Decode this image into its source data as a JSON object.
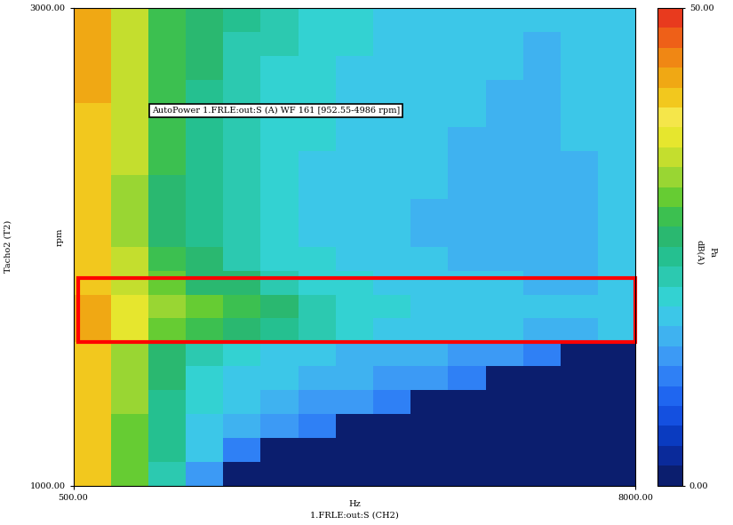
{
  "chart_data": {
    "type": "heatmap",
    "annotations": [
      "AutoPower 1.FRLE:out:S (A) WF 161 [952.55-4986 rpm]"
    ],
    "x_label": "Hz",
    "x_sublabel": "1.FRLE:out:S (CH2)",
    "y_label": "Tacho2 (T2)",
    "y_unit": "rpm",
    "xlim": [
      500,
      8000
    ],
    "ylim": [
      1000,
      3000
    ],
    "xticks": [
      {
        "value": 500,
        "label": "500.00"
      },
      {
        "value": 8000,
        "label": "8000.00"
      }
    ],
    "yticks": [
      {
        "value": 1000,
        "label": "1000.00"
      },
      {
        "value": 3000,
        "label": "3000.00"
      }
    ],
    "x_edges": [
      500,
      1000,
      1500,
      2000,
      2500,
      3000,
      3500,
      4000,
      4500,
      5000,
      5500,
      6000,
      6500,
      7000,
      7500,
      8000
    ],
    "y_edges": [
      1000,
      1100,
      1200,
      1300,
      1400,
      1500,
      1600,
      1700,
      1800,
      1900,
      2000,
      2100,
      2200,
      2300,
      2400,
      2500,
      2600,
      2700,
      2800,
      2900,
      3000
    ],
    "cells": [
      [
        40,
        30,
        22,
        14,
        0,
        0,
        0,
        0,
        0,
        0,
        0,
        0,
        0,
        0,
        0
      ],
      [
        40,
        31,
        23,
        17,
        12,
        0,
        0,
        0,
        0,
        0,
        0,
        0,
        0,
        0,
        0
      ],
      [
        41,
        31,
        24,
        18,
        15,
        13,
        11,
        0,
        0,
        0,
        0,
        0,
        0,
        0,
        0
      ],
      [
        41,
        32,
        24,
        19,
        17,
        15,
        14,
        13,
        11,
        0,
        0,
        0,
        0,
        0,
        0
      ],
      [
        41,
        32,
        25,
        20,
        18,
        17,
        16,
        15,
        14,
        13,
        11,
        0,
        0,
        0,
        0
      ],
      [
        41,
        33,
        26,
        21,
        19,
        18,
        17,
        16,
        16,
        15,
        14,
        13,
        12,
        0,
        0
      ],
      [
        42,
        36,
        31,
        28,
        26,
        23,
        21,
        19,
        18,
        18,
        17,
        17,
        16,
        16,
        17
      ],
      [
        42,
        37,
        32,
        30,
        28,
        25,
        22,
        20,
        19,
        18,
        18,
        17,
        17,
        17,
        18
      ],
      [
        41,
        35,
        30,
        27,
        25,
        22,
        20,
        19,
        18,
        18,
        17,
        17,
        16,
        16,
        17
      ],
      [
        40,
        34,
        28,
        25,
        22,
        20,
        19,
        18,
        17,
        17,
        16,
        16,
        16,
        16,
        17
      ],
      [
        40,
        33,
        27,
        24,
        21,
        19,
        18,
        17,
        17,
        16,
        16,
        16,
        15,
        16,
        17
      ],
      [
        40,
        33,
        27,
        23,
        21,
        19,
        18,
        17,
        17,
        16,
        16,
        15,
        15,
        16,
        17
      ],
      [
        41,
        33,
        27,
        23,
        21,
        19,
        18,
        18,
        17,
        17,
        16,
        16,
        15,
        16,
        18
      ],
      [
        41,
        34,
        28,
        24,
        21,
        20,
        18,
        18,
        17,
        17,
        16,
        16,
        16,
        16,
        18
      ],
      [
        41,
        34,
        28,
        24,
        22,
        20,
        19,
        18,
        17,
        17,
        16,
        16,
        16,
        17,
        18
      ],
      [
        41,
        34,
        28,
        24,
        22,
        20,
        19,
        18,
        18,
        17,
        17,
        16,
        16,
        17,
        18
      ],
      [
        42,
        34,
        28,
        24,
        22,
        20,
        19,
        18,
        18,
        17,
        17,
        16,
        16,
        17,
        18
      ],
      [
        42,
        35,
        29,
        25,
        22,
        20,
        19,
        18,
        18,
        17,
        17,
        17,
        16,
        17,
        18
      ],
      [
        42,
        35,
        29,
        25,
        22,
        21,
        19,
        19,
        18,
        17,
        17,
        17,
        16,
        17,
        18
      ],
      [
        43,
        35,
        29,
        25,
        23,
        21,
        20,
        19,
        18,
        18,
        17,
        17,
        17,
        17,
        18
      ]
    ],
    "colorbar": {
      "range": [
        0,
        50
      ],
      "ticks": [
        {
          "value": 0,
          "label": "0.00"
        },
        {
          "value": 50,
          "label": "50.00"
        }
      ],
      "label": "dB(A)",
      "unit": "Pa"
    },
    "highlight": {
      "x": [
        570,
        8000
      ],
      "y": [
        1600,
        1870
      ],
      "color": "#ff0000"
    }
  }
}
